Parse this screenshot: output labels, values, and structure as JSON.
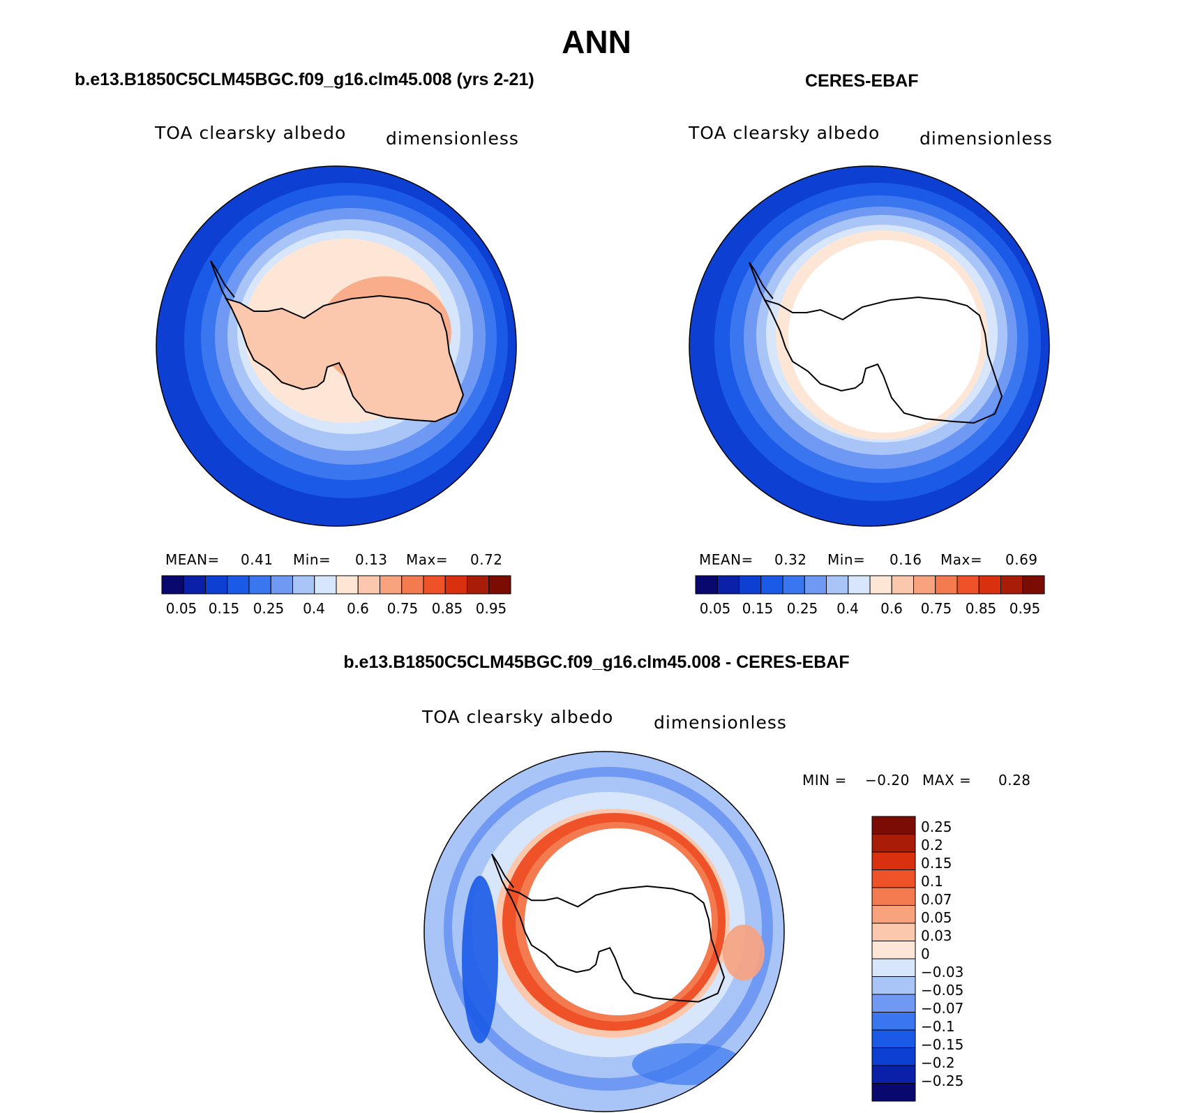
{
  "page": {
    "title": "ANN"
  },
  "palettes": {
    "abs": [
      "#08086e",
      "#0a20a8",
      "#0d3fd2",
      "#1a5ae6",
      "#3a76ef",
      "#6f99f3",
      "#a9c5f7",
      "#d8e6fb",
      "#fde6d6",
      "#fbc8ae",
      "#f8a27e",
      "#f47a4f",
      "#ef5228",
      "#d9300f",
      "#a81c08",
      "#7a0c04"
    ],
    "diff": [
      "#08086e",
      "#0a20a8",
      "#0d3fd2",
      "#1a5ae6",
      "#3a76ef",
      "#6f99f3",
      "#a9c5f7",
      "#d8e6fb",
      "#fde6d6",
      "#fbc8ae",
      "#f8a27e",
      "#f47a4f",
      "#ef5228",
      "#d9300f",
      "#a81c08",
      "#7a0c04"
    ],
    "land_outline": "#000000"
  },
  "panels": {
    "model": {
      "title": "b.e13.B1850C5CLM45BGC.f09_g16.clm45.008 (yrs 2-21)",
      "variable": "TOA clearsky albedo",
      "units": "dimensionless",
      "stats": {
        "mean_label": "MEAN=",
        "mean": "0.41",
        "min_label": "Min=",
        "min": "0.13",
        "max_label": "Max=",
        "max": "0.72"
      },
      "colorbar_ticks": [
        "0.05",
        "0.15",
        "0.25",
        "0.4",
        "0.6",
        "0.75",
        "0.85",
        "0.95"
      ]
    },
    "obs": {
      "title": "CERES-EBAF",
      "variable": "TOA clearsky albedo",
      "units": "dimensionless",
      "stats": {
        "mean_label": "MEAN=",
        "mean": "0.32",
        "min_label": "Min=",
        "min": "0.16",
        "max_label": "Max=",
        "max": "0.69"
      },
      "colorbar_ticks": [
        "0.05",
        "0.15",
        "0.25",
        "0.4",
        "0.6",
        "0.75",
        "0.85",
        "0.95"
      ]
    },
    "diff": {
      "title": "b.e13.B1850C5CLM45BGC.f09_g16.clm45.008 - CERES-EBAF",
      "variable": "TOA clearsky albedo",
      "units": "dimensionless",
      "stats": {
        "min_label": "MIN =",
        "min": "−0.20",
        "max_label": "MAX =",
        "max": "0.28"
      },
      "colorbar_ticks": [
        "0.25",
        "0.2",
        "0.15",
        "0.1",
        "0.07",
        "0.05",
        "0.03",
        "0",
        "−0.03",
        "−0.05",
        "−0.07",
        "−0.1",
        "−0.15",
        "−0.2",
        "−0.25"
      ]
    }
  }
}
